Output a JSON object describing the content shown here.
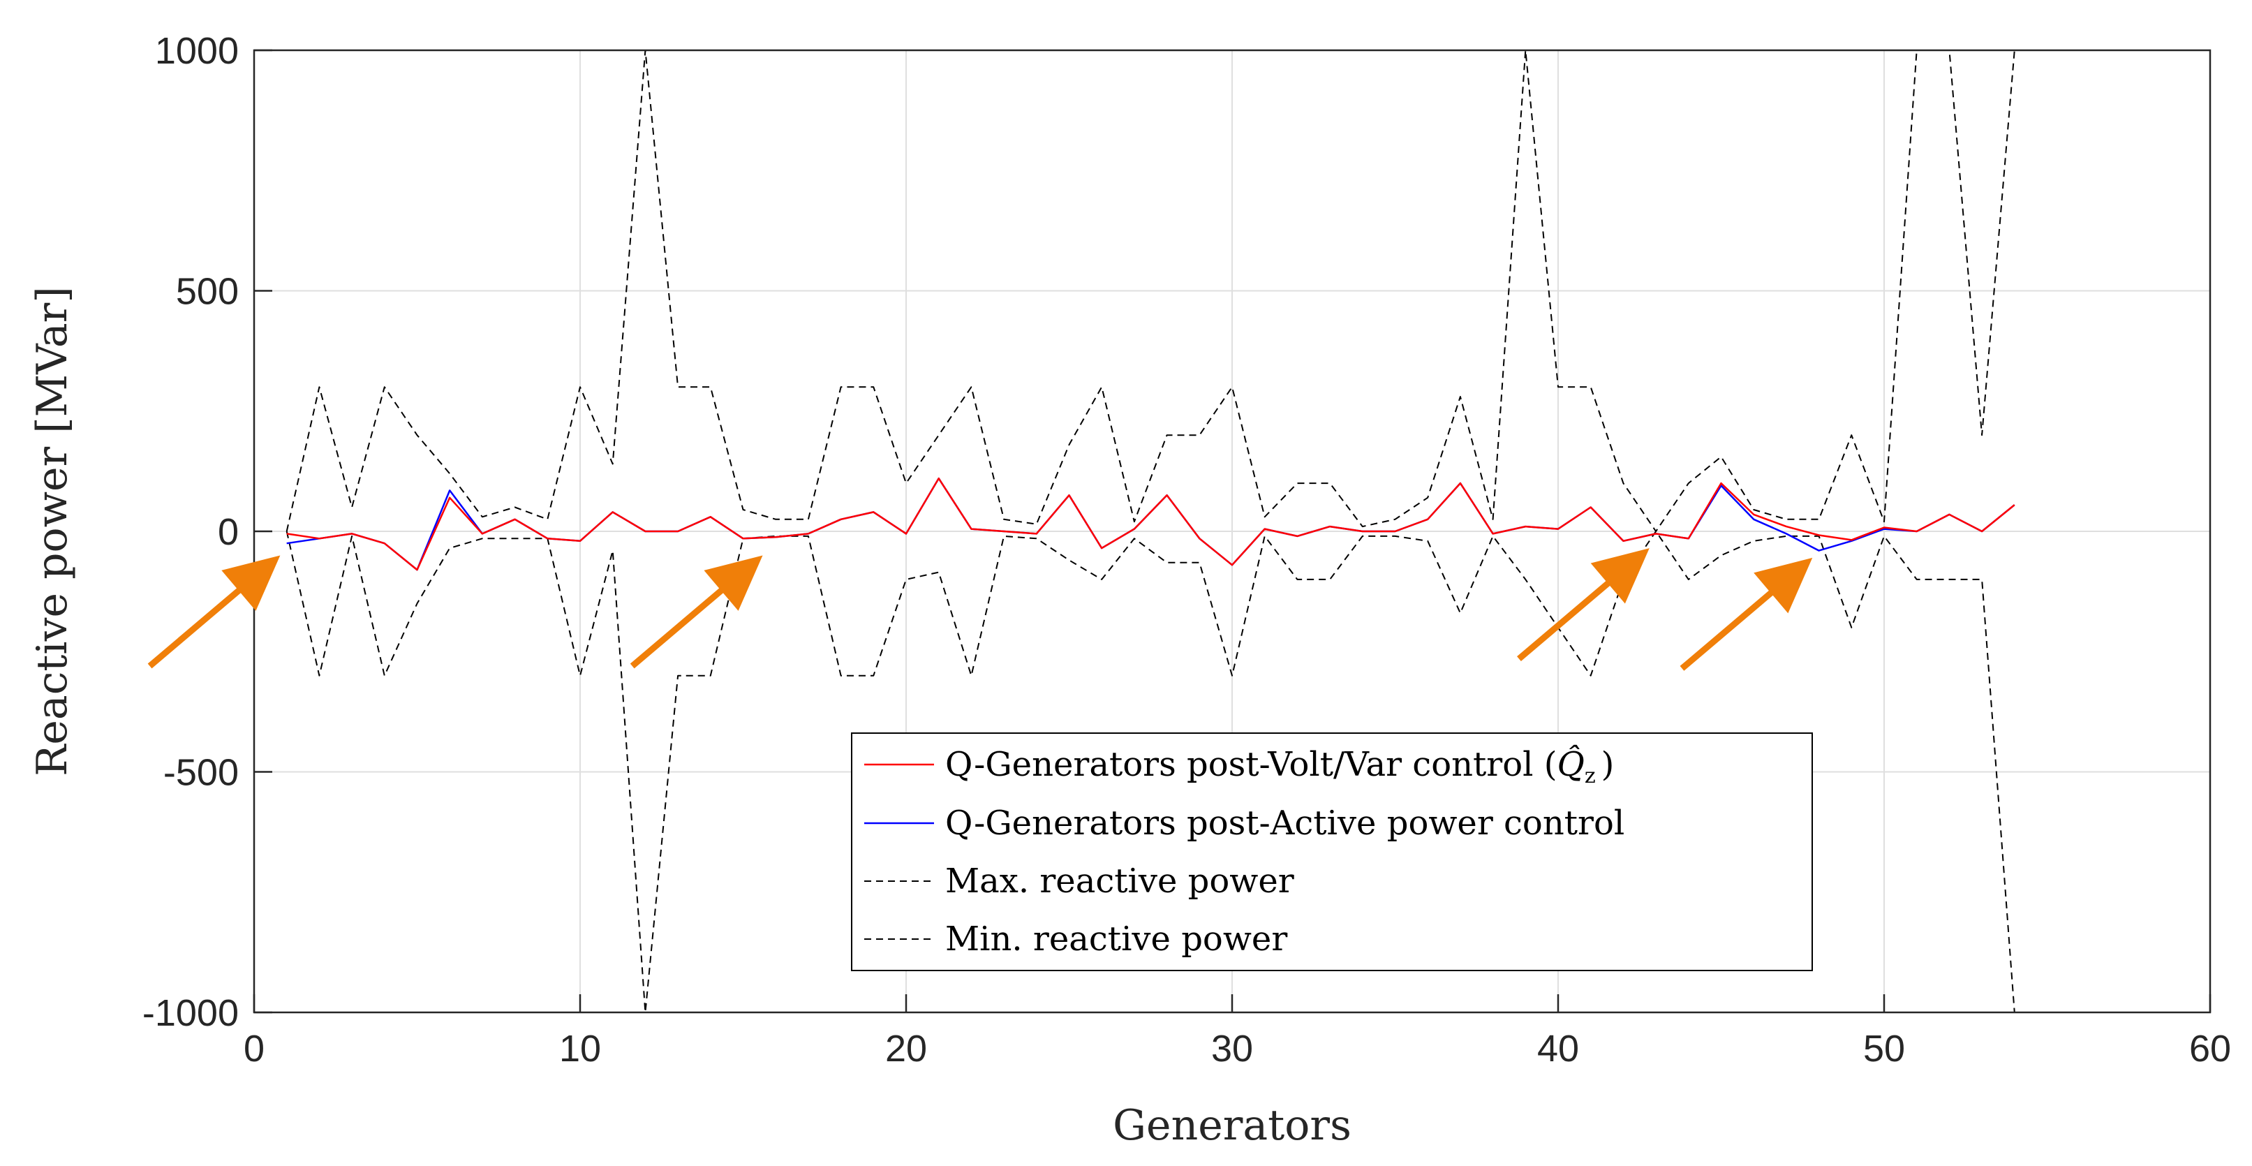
{
  "chart_data": {
    "type": "line",
    "title": "",
    "xlabel": "Generators",
    "ylabel": "Reactive power [MVar]",
    "xlim": [
      0,
      60
    ],
    "ylim": [
      -1000,
      1000
    ],
    "xticks": [
      0,
      10,
      20,
      30,
      40,
      50,
      60
    ],
    "yticks": [
      -1000,
      -500,
      0,
      500,
      1000
    ],
    "xtick_labels": [
      "0",
      "10",
      "20",
      "30",
      "40",
      "50",
      "60"
    ],
    "ytick_labels": [
      "-1000",
      "-500",
      "0",
      "500",
      "1000"
    ],
    "grid": true,
    "legend_location": "lower-center",
    "x": [
      1,
      2,
      3,
      4,
      5,
      6,
      7,
      8,
      9,
      10,
      11,
      12,
      13,
      14,
      15,
      16,
      17,
      18,
      19,
      20,
      21,
      22,
      23,
      24,
      25,
      26,
      27,
      28,
      29,
      30,
      31,
      32,
      33,
      34,
      35,
      36,
      37,
      38,
      39,
      40,
      41,
      42,
      43,
      44,
      45,
      46,
      47,
      48,
      49,
      50,
      51,
      52,
      53,
      54
    ],
    "series": [
      {
        "name": "Q-Generators post-Volt/Var control (",
        "name_symbol": "Q̂",
        "name_subscript": "z",
        "name_suffix": ")",
        "color": "#ff0000",
        "style": "solid",
        "values": [
          -5,
          -15,
          -5,
          -25,
          -80,
          70,
          -5,
          25,
          -15,
          -20,
          40,
          0,
          0,
          30,
          -15,
          -12,
          -5,
          25,
          40,
          -5,
          110,
          5,
          0,
          -5,
          75,
          -35,
          5,
          75,
          -15,
          -70,
          5,
          -10,
          10,
          0,
          0,
          25,
          100,
          -5,
          10,
          5,
          50,
          -20,
          -5,
          -15,
          100,
          35,
          10,
          -8,
          -18,
          8,
          0,
          35,
          0,
          55
        ]
      },
      {
        "name": "Q-Generators post-Active power control",
        "color": "#0000ff",
        "style": "solid",
        "values": [
          -25,
          -15,
          -5,
          -25,
          -80,
          85,
          -5,
          25,
          -15,
          -20,
          40,
          0,
          0,
          30,
          -15,
          -12,
          -5,
          25,
          40,
          -5,
          110,
          5,
          0,
          -5,
          75,
          -35,
          5,
          75,
          -15,
          -70,
          5,
          -10,
          10,
          0,
          0,
          25,
          100,
          -5,
          10,
          5,
          50,
          -20,
          -5,
          -15,
          95,
          25,
          -5,
          -40,
          -20,
          5,
          0,
          35,
          0,
          55
        ]
      },
      {
        "name": "Max. reactive power",
        "color": "#000000",
        "style": "dashed",
        "values": [
          0,
          300,
          50,
          300,
          200,
          120,
          30,
          50,
          25,
          300,
          140,
          1000,
          300,
          300,
          45,
          25,
          25,
          300,
          300,
          100,
          200,
          300,
          25,
          15,
          180,
          300,
          20,
          200,
          200,
          300,
          30,
          100,
          100,
          10,
          25,
          70,
          280,
          25,
          1000,
          300,
          300,
          100,
          0,
          100,
          155,
          45,
          25,
          25,
          200,
          20,
          1000,
          1000,
          200,
          1000
        ]
      },
      {
        "name": "Min. reactive power",
        "color": "#000000",
        "style": "dashed",
        "values": [
          0,
          -300,
          -10,
          -300,
          -150,
          -35,
          -15,
          -15,
          -15,
          -300,
          -40,
          -1000,
          -300,
          -300,
          -15,
          -10,
          -10,
          -300,
          -300,
          -100,
          -85,
          -300,
          -10,
          -15,
          -60,
          -100,
          -15,
          -65,
          -65,
          -300,
          -10,
          -100,
          -100,
          -10,
          -10,
          -20,
          -170,
          -10,
          -100,
          -200,
          -300,
          -100,
          0,
          -100,
          -50,
          -20,
          -10,
          -10,
          -200,
          -10,
          -100,
          -100,
          -100,
          -1000
        ]
      }
    ],
    "annotations": [
      {
        "type": "arrow",
        "color": "#f07f09",
        "from": [
          -3.2,
          -280
        ],
        "to": [
          0.8,
          -50
        ]
      },
      {
        "type": "arrow",
        "color": "#f07f09",
        "from": [
          11.6,
          -280
        ],
        "to": [
          15.6,
          -50
        ]
      },
      {
        "type": "arrow",
        "color": "#f07f09",
        "from": [
          38.8,
          -265
        ],
        "to": [
          42.8,
          -35
        ]
      },
      {
        "type": "arrow",
        "color": "#f07f09",
        "from": [
          43.8,
          -285
        ],
        "to": [
          47.8,
          -55
        ]
      }
    ]
  }
}
